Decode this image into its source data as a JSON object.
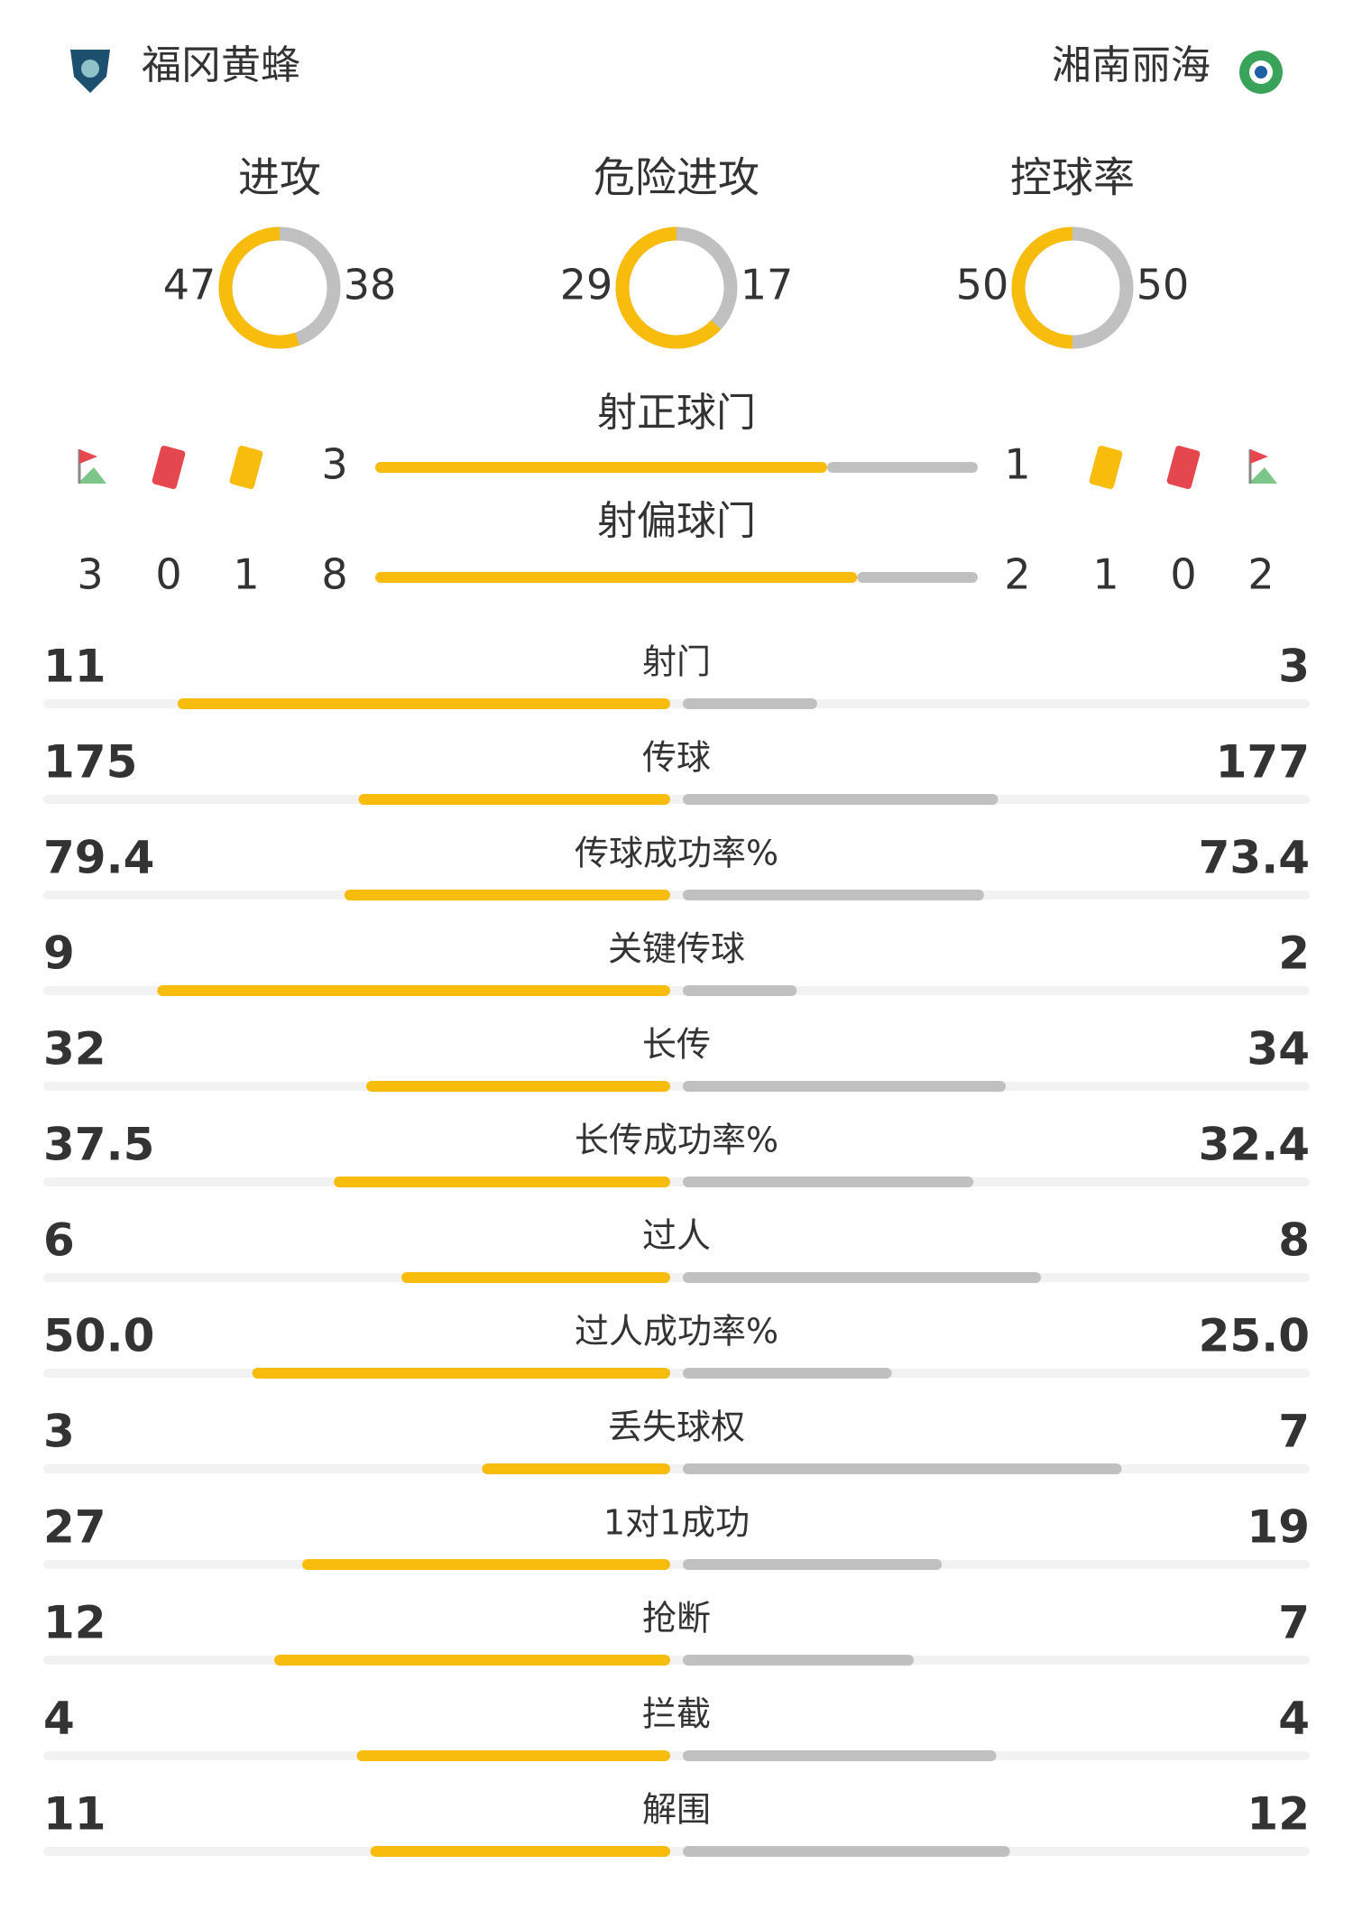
{
  "header": {
    "home": "福冈黄蜂",
    "away": "湘南丽海"
  },
  "donuts": [
    {
      "label": "进攻",
      "home": 47,
      "away": 38
    },
    {
      "label": "危险进攻",
      "home": 29,
      "away": 17
    },
    {
      "label": "控球率",
      "home": 50,
      "away": 50
    }
  ],
  "cards": {
    "home": {
      "corners": 3,
      "red": 0,
      "yellow": 1
    },
    "away": {
      "yellow": 1,
      "red": 0,
      "corners": 2
    }
  },
  "shots": [
    {
      "label": "射正球门",
      "home": 3,
      "away": 1
    },
    {
      "label": "射偏球门",
      "home": 8,
      "away": 2
    }
  ],
  "stats": [
    {
      "label": "射门",
      "home": 11,
      "away": 3
    },
    {
      "label": "传球",
      "home": 175,
      "away": 177
    },
    {
      "label": "传球成功率%",
      "home": 79.4,
      "away": 73.4
    },
    {
      "label": "关键传球",
      "home": 9,
      "away": 2
    },
    {
      "label": "长传",
      "home": 32,
      "away": 34
    },
    {
      "label": "长传成功率%",
      "home": 37.5,
      "away": 32.4
    },
    {
      "label": "过人",
      "home": 6,
      "away": 8
    },
    {
      "label": "过人成功率%",
      "home": "50.0",
      "away": "25.0"
    },
    {
      "label": "丢失球权",
      "home": 3,
      "away": 7
    },
    {
      "label": "1对1成功",
      "home": 27,
      "away": 19
    },
    {
      "label": "抢断",
      "home": 12,
      "away": 7
    },
    {
      "label": "拦截",
      "home": 4,
      "away": 4
    },
    {
      "label": "解围",
      "home": 11,
      "away": 12
    }
  ]
}
